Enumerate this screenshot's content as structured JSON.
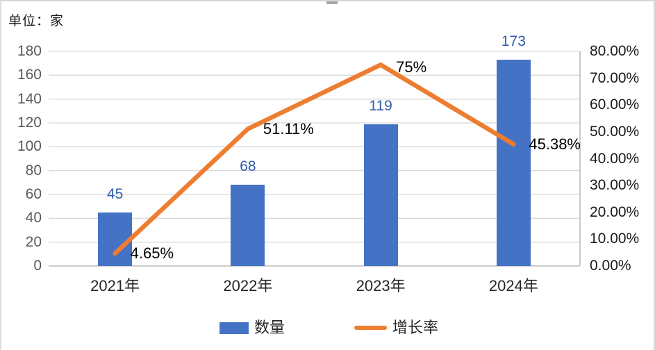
{
  "unit_label": "单位：家",
  "frame": {
    "border_color": "#d9d9d9",
    "handle_color": "#a8a8a8"
  },
  "chart_data": {
    "type": "bar",
    "combo": "bar+line",
    "title": "",
    "categories": [
      "2021年",
      "2022年",
      "2023年",
      "2024年"
    ],
    "series": [
      {
        "name": "数量",
        "chart": "bar",
        "axis": "left",
        "values": [
          45,
          68,
          119,
          173
        ],
        "value_labels": [
          "45",
          "68",
          "119",
          "173"
        ],
        "color": "#4472C4",
        "label_color": "#2f5cad"
      },
      {
        "name": "增长率",
        "chart": "line",
        "axis": "right",
        "values": [
          4.65,
          51.11,
          75,
          45.38
        ],
        "point_labels": [
          "4.65%",
          "51.11%",
          "75%",
          "45.38%"
        ],
        "color": "#ED7D31",
        "label_color": "#000000"
      }
    ],
    "left_axis": {
      "min": 0,
      "max": 180,
      "step": 20,
      "tick_labels": [
        "180",
        "160",
        "140",
        "120",
        "100",
        "80",
        "60",
        "40",
        "20",
        "0"
      ],
      "color": "#595959"
    },
    "right_axis": {
      "min": 0,
      "max": 80,
      "step": 10,
      "tick_labels": [
        "80.00%",
        "70.00%",
        "60.00%",
        "50.00%",
        "40.00%",
        "30.00%",
        "20.00%",
        "10.00%",
        "0.00%"
      ],
      "color": "#1a1a1a"
    },
    "grid": true,
    "gridline_color": "#d9d9d9",
    "axis_line_color": "#bdbdbd",
    "legend": {
      "position": "bottom",
      "items": [
        {
          "label": "数量",
          "swatch": "bar",
          "color": "#4472C4"
        },
        {
          "label": "增长率",
          "swatch": "line",
          "color": "#ED7D31"
        }
      ]
    }
  }
}
